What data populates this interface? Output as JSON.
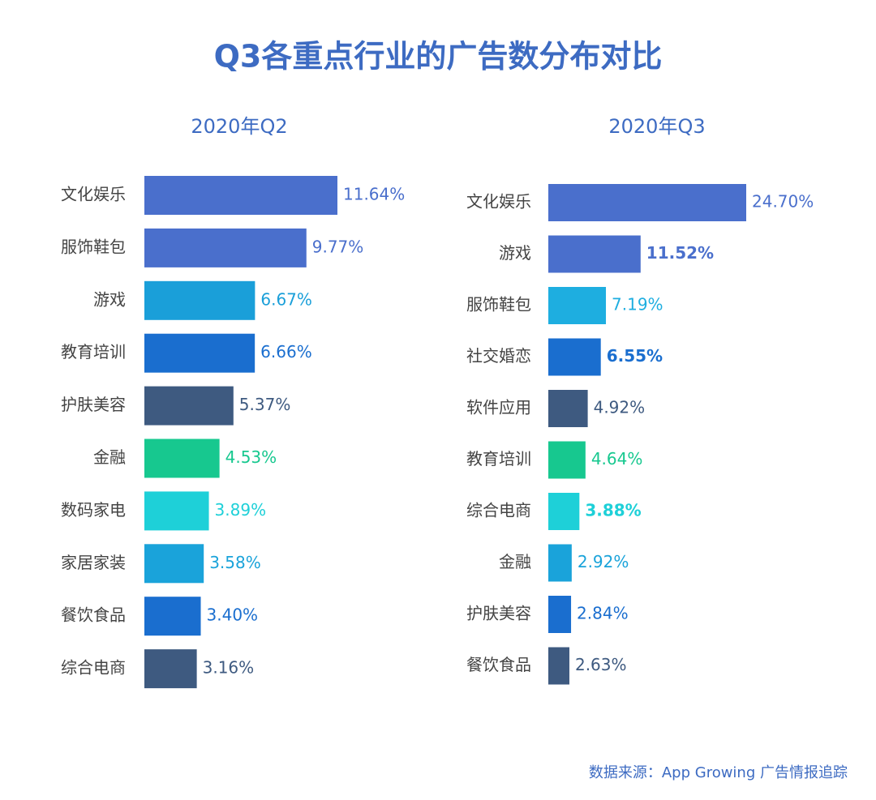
{
  "title": "Q3各重点行业的广告数分布对比",
  "source": "数据来源：App Growing 广告情报追踪",
  "chart_data": [
    {
      "type": "bar",
      "orientation": "horizontal",
      "title": "2020年Q2",
      "categories": [
        "文化娱乐",
        "服饰鞋包",
        "游戏",
        "教育培训",
        "护肤美容",
        "金融",
        "数码家电",
        "家居家装",
        "餐饮食品",
        "综合电商"
      ],
      "values": [
        11.64,
        9.77,
        6.67,
        6.66,
        5.37,
        4.53,
        3.89,
        3.58,
        3.4,
        3.16
      ],
      "value_labels": [
        "11.64%",
        "9.77%",
        "6.67%",
        "6.66%",
        "5.37%",
        "4.53%",
        "3.89%",
        "3.58%",
        "3.40%",
        "3.16%"
      ],
      "value_label_bold": [
        false,
        false,
        false,
        false,
        false,
        false,
        false,
        false,
        false,
        false
      ],
      "colors": [
        "#4a6fcc",
        "#4a6fcc",
        "#1a9fd9",
        "#1a6ecf",
        "#3e5a80",
        "#17c88f",
        "#1ed0d8",
        "#1aa3da",
        "#1a6ecf",
        "#3e5a80"
      ]
    },
    {
      "type": "bar",
      "orientation": "horizontal",
      "title": "2020年Q3",
      "categories": [
        "文化娱乐",
        "游戏",
        "服饰鞋包",
        "社交婚恋",
        "软件应用",
        "教育培训",
        "综合电商",
        "金融",
        "护肤美容",
        "餐饮食品"
      ],
      "values": [
        24.7,
        11.52,
        7.19,
        6.55,
        4.92,
        4.64,
        3.88,
        2.92,
        2.84,
        2.63
      ],
      "value_labels": [
        "24.70%",
        "11.52%",
        "7.19%",
        "6.55%",
        "4.92%",
        "4.64%",
        "3.88%",
        "2.92%",
        "2.84%",
        "2.63%"
      ],
      "value_label_bold": [
        false,
        true,
        false,
        true,
        false,
        false,
        true,
        false,
        false,
        false
      ],
      "colors": [
        "#4a6fcc",
        "#4a6fcc",
        "#1eaee0",
        "#1a6ecf",
        "#3e5a80",
        "#17c88f",
        "#1ed0d8",
        "#1aa3da",
        "#1a6ecf",
        "#3e5a80"
      ]
    }
  ]
}
